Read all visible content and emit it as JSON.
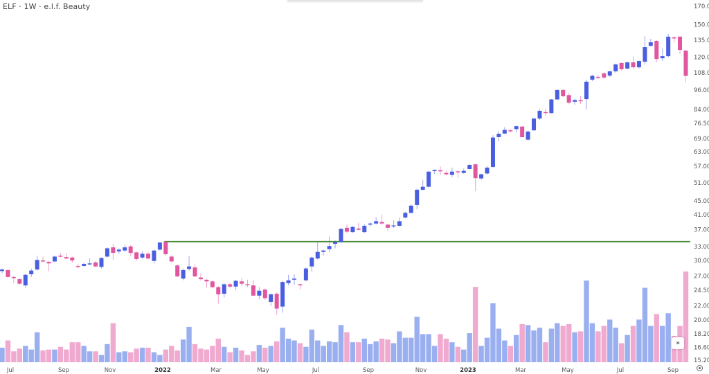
{
  "header": {
    "title": "ELF · 1W · e.l.f. Beauty"
  },
  "colors": {
    "up": "#4a5fe0",
    "down": "#e0569f",
    "volume_up": "#9aaff0",
    "volume_down": "#f0a9cf",
    "resistance_line": "#4a8a35"
  },
  "controls": {
    "scroll_to_latest_icon": "double-chevron-right-icon",
    "settings_icon": "gear-icon",
    "scroll_glyph": "»"
  },
  "chart_data": {
    "type": "candlestick",
    "title": "ELF · 1W · e.l.f. Beauty",
    "interval": "1W",
    "y_scale": "log",
    "ylim": [
      15.2,
      170
    ],
    "grid": false,
    "y_ticks": [
      "170.00",
      "150.00",
      "135.00",
      "120.00",
      "108.00",
      "96.00",
      "84.00",
      "76.50",
      "69.00",
      "63.00",
      "57.00",
      "51.00",
      "45.00",
      "41.00",
      "37.00",
      "33.00",
      "30.00",
      "27.00",
      "24.50",
      "22.00",
      "20.00",
      "18.20",
      "16.60",
      "15.20"
    ],
    "x_ticks": [
      "Jul",
      "Sep",
      "Nov",
      "2022",
      "Mar",
      "May",
      "Jul",
      "Sep",
      "Nov",
      "2023",
      "Mar",
      "May",
      "Jul",
      "Sep"
    ],
    "resistance_level": 34.1,
    "ohlc": [
      [
        27.9,
        28.4,
        27.5,
        28.2
      ],
      [
        28.1,
        28.3,
        26.6,
        26.8
      ],
      [
        26.8,
        27.0,
        25.7,
        26.6
      ],
      [
        26.4,
        26.6,
        25.4,
        25.6
      ],
      [
        25.3,
        27.4,
        24.9,
        27.2
      ],
      [
        27.3,
        28.4,
        26.8,
        28.0
      ],
      [
        28.2,
        31.0,
        28.0,
        30.1
      ],
      [
        30.0,
        30.8,
        29.6,
        29.8
      ],
      [
        29.7,
        29.9,
        27.9,
        29.4
      ],
      [
        29.8,
        31.0,
        29.6,
        30.8
      ],
      [
        31.0,
        31.6,
        30.6,
        30.9
      ],
      [
        30.7,
        31.6,
        30.2,
        30.4
      ],
      [
        30.6,
        30.8,
        29.5,
        30.0
      ],
      [
        28.9,
        29.3,
        28.4,
        28.8
      ],
      [
        28.9,
        29.6,
        28.7,
        29.3
      ],
      [
        29.2,
        30.4,
        29.0,
        29.4
      ],
      [
        29.6,
        29.9,
        28.6,
        28.8
      ],
      [
        28.7,
        30.6,
        28.4,
        30.5
      ],
      [
        30.8,
        32.8,
        30.6,
        32.6
      ],
      [
        32.8,
        33.6,
        30.1,
        31.6
      ],
      [
        31.9,
        32.6,
        31.4,
        32.3
      ],
      [
        32.1,
        33.4,
        31.8,
        32.8
      ],
      [
        33.0,
        33.3,
        31.0,
        31.6
      ],
      [
        31.7,
        31.9,
        29.9,
        30.3
      ],
      [
        30.6,
        31.9,
        30.3,
        31.4
      ],
      [
        31.4,
        31.8,
        30.2,
        30.4
      ],
      [
        29.9,
        32.3,
        29.4,
        32.1
      ],
      [
        32.3,
        34.0,
        32.1,
        33.9
      ],
      [
        34.1,
        34.3,
        31.0,
        31.3
      ],
      [
        30.8,
        31.1,
        29.6,
        29.8
      ],
      [
        29.0,
        29.2,
        26.8,
        26.9
      ],
      [
        26.5,
        28.4,
        26.2,
        28.1
      ],
      [
        28.3,
        30.9,
        28.0,
        28.8
      ],
      [
        28.6,
        29.2,
        26.8,
        26.9
      ],
      [
        26.7,
        27.5,
        26.2,
        26.4
      ],
      [
        26.3,
        26.5,
        24.9,
        26.0
      ],
      [
        26.0,
        26.2,
        24.8,
        25.0
      ],
      [
        25.0,
        25.2,
        22.3,
        23.8
      ],
      [
        23.9,
        25.7,
        23.3,
        25.5
      ],
      [
        25.5,
        25.8,
        24.8,
        25.1
      ],
      [
        25.1,
        26.3,
        24.5,
        26.1
      ],
      [
        26.0,
        26.6,
        25.2,
        25.6
      ],
      [
        25.5,
        26.3,
        25.0,
        25.4
      ],
      [
        25.3,
        26.3,
        23.5,
        23.6
      ],
      [
        23.6,
        25.0,
        23.0,
        24.4
      ],
      [
        24.6,
        24.8,
        22.9,
        23.2
      ],
      [
        22.6,
        24.0,
        22.0,
        23.8
      ],
      [
        23.9,
        24.1,
        20.7,
        21.6
      ],
      [
        21.9,
        26.1,
        21.0,
        25.9
      ],
      [
        25.7,
        27.2,
        25.3,
        26.2
      ],
      [
        26.4,
        27.3,
        25.4,
        26.5
      ],
      [
        25.5,
        25.6,
        24.6,
        25.4
      ],
      [
        26.2,
        28.6,
        26.0,
        28.4
      ],
      [
        28.8,
        30.8,
        27.8,
        30.6
      ],
      [
        30.4,
        34.0,
        30.2,
        31.8
      ],
      [
        31.8,
        32.3,
        31.0,
        32.1
      ],
      [
        32.4,
        35.3,
        31.8,
        33.1
      ],
      [
        33.6,
        34.4,
        32.6,
        34.0
      ],
      [
        34.0,
        37.5,
        33.8,
        37.2
      ],
      [
        37.5,
        38.3,
        36.1,
        36.5
      ],
      [
        36.4,
        38.0,
        36.2,
        37.7
      ],
      [
        37.3,
        38.8,
        36.8,
        37.0
      ],
      [
        36.4,
        38.4,
        36.2,
        38.0
      ],
      [
        38.3,
        39.0,
        37.8,
        38.6
      ],
      [
        38.6,
        40.3,
        38.3,
        39.2
      ],
      [
        39.0,
        41.0,
        38.3,
        38.6
      ],
      [
        38.3,
        38.5,
        36.8,
        37.5
      ],
      [
        37.9,
        39.4,
        37.5,
        38.1
      ],
      [
        38.0,
        40.2,
        37.8,
        39.2
      ],
      [
        40.2,
        41.8,
        40.0,
        41.5
      ],
      [
        41.5,
        44.0,
        41.3,
        43.6
      ],
      [
        43.8,
        49.0,
        42.5,
        48.6
      ],
      [
        48.6,
        52.0,
        48.3,
        49.6
      ],
      [
        49.6,
        55.3,
        49.3,
        55.0
      ],
      [
        55.2,
        55.8,
        54.2,
        55.6
      ],
      [
        55.5,
        57.0,
        53.8,
        55.3
      ],
      [
        54.5,
        55.3,
        53.5,
        54.0
      ],
      [
        53.8,
        56.5,
        53.0,
        55.0
      ],
      [
        55.1,
        55.6,
        52.8,
        54.8
      ],
      [
        54.5,
        56.2,
        54.2,
        55.3
      ],
      [
        56.0,
        58.0,
        55.8,
        57.6
      ],
      [
        57.8,
        58.2,
        48.1,
        52.6
      ],
      [
        52.5,
        54.3,
        52.0,
        54.0
      ],
      [
        54.3,
        57.2,
        53.8,
        56.5
      ],
      [
        56.8,
        70.5,
        56.5,
        69.4
      ],
      [
        69.6,
        72.6,
        67.6,
        71.2
      ],
      [
        71.3,
        74.5,
        71.0,
        73.1
      ],
      [
        72.9,
        73.7,
        71.8,
        72.5
      ],
      [
        73.5,
        75.4,
        71.8,
        75.0
      ],
      [
        74.8,
        75.0,
        69.4,
        69.6
      ],
      [
        68.4,
        72.8,
        68.0,
        72.3
      ],
      [
        72.9,
        79.2,
        72.6,
        79.0
      ],
      [
        79.0,
        84.2,
        78.4,
        83.3
      ],
      [
        82.6,
        84.5,
        80.4,
        82.3
      ],
      [
        82.0,
        90.3,
        81.8,
        90.0
      ],
      [
        90.0,
        96.4,
        89.6,
        96.0
      ],
      [
        96.0,
        96.6,
        91.5,
        92.0
      ],
      [
        92.7,
        94.0,
        87.2,
        88.0
      ],
      [
        88.6,
        90.5,
        86.8,
        89.6
      ],
      [
        89.5,
        92.0,
        87.2,
        89.2
      ],
      [
        90.2,
        103.0,
        84.0,
        101.6
      ],
      [
        103.0,
        106.5,
        102.0,
        105.7
      ],
      [
        105.0,
        106.5,
        103.5,
        104.6
      ],
      [
        107.5,
        108.5,
        103.5,
        104.5
      ],
      [
        105.9,
        109.5,
        105.0,
        109.0
      ],
      [
        109.0,
        115.0,
        108.0,
        114.3
      ],
      [
        115.4,
        116.0,
        109.5,
        110.6
      ],
      [
        111.1,
        116.5,
        110.5,
        115.9
      ],
      [
        115.9,
        120.9,
        110.5,
        112.1
      ],
      [
        112.1,
        117.5,
        111.0,
        117.0
      ],
      [
        116.4,
        138.7,
        114.0,
        128.6
      ],
      [
        129.8,
        136.1,
        129.0,
        132.9
      ],
      [
        134.2,
        135.0,
        115.9,
        118.6
      ],
      [
        119.2,
        127.4,
        117.0,
        120.9
      ],
      [
        120.9,
        140.7,
        120.0,
        138.1
      ],
      [
        137.4,
        138.5,
        132.9,
        136.8
      ],
      [
        138.1,
        139.0,
        122.7,
        126.2
      ],
      [
        125.6,
        126.0,
        101.4,
        105.7
      ]
    ],
    "volume_relative": [
      16,
      24,
      12,
      15,
      18,
      14,
      33,
      13,
      14,
      14,
      17,
      14,
      22,
      22,
      18,
      12,
      12,
      8,
      20,
      43,
      11,
      12,
      11,
      15,
      16,
      16,
      11,
      8,
      14,
      18,
      13,
      25,
      39,
      20,
      15,
      14,
      18,
      26,
      17,
      11,
      16,
      13,
      8,
      12,
      19,
      16,
      18,
      23,
      38,
      26,
      24,
      21,
      17,
      36,
      24,
      18,
      23,
      22,
      41,
      33,
      22,
      22,
      26,
      20,
      23,
      26,
      25,
      21,
      34,
      27,
      27,
      50,
      31,
      31,
      18,
      31,
      26,
      22,
      17,
      14,
      32,
      83,
      18,
      27,
      65,
      37,
      24,
      18,
      30,
      42,
      41,
      35,
      38,
      22,
      37,
      43,
      40,
      42,
      33,
      34,
      90,
      43,
      34,
      40,
      47,
      38,
      21,
      30,
      40,
      47,
      82,
      40,
      53,
      40,
      54,
      29,
      40,
      100
    ]
  }
}
